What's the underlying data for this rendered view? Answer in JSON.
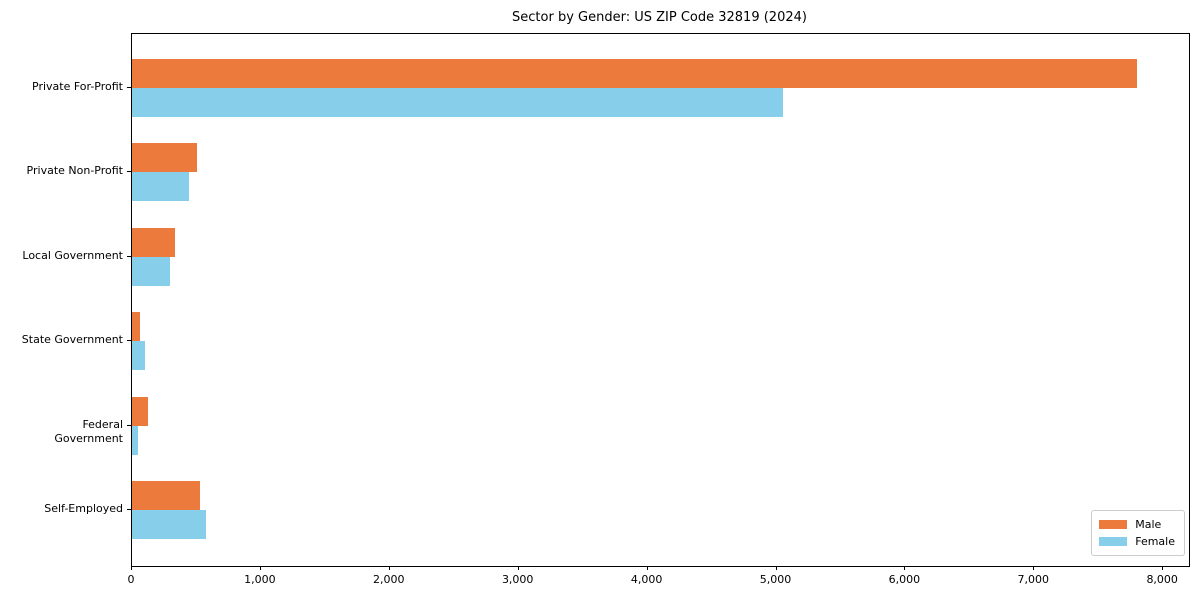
{
  "chart_data": {
    "type": "bar",
    "orientation": "horizontal",
    "title": "Sector by Gender: US ZIP Code 32819 (2024)",
    "categories": [
      "Private For-Profit",
      "Private Non-Profit",
      "Local Government",
      "State Government",
      "Federal Government",
      "Self-Employed"
    ],
    "series": [
      {
        "name": "Male",
        "color": "#EC7A3C",
        "values": [
          7800,
          500,
          330,
          60,
          125,
          530
        ]
      },
      {
        "name": "Female",
        "color": "#87CEEB",
        "values": [
          5050,
          445,
          295,
          100,
          50,
          575
        ]
      }
    ],
    "xlabel": "",
    "ylabel": "",
    "xlim": [
      0,
      8200
    ],
    "xticks": [
      0,
      1000,
      2000,
      3000,
      4000,
      5000,
      6000,
      7000,
      8000
    ],
    "xtick_labels": [
      "0",
      "1,000",
      "2,000",
      "3,000",
      "4,000",
      "5,000",
      "6,000",
      "7,000",
      "8,000"
    ],
    "legend_position": "lower right",
    "grid": false,
    "colors": {
      "axis": "#000000",
      "legend_border": "#cccccc",
      "background": "#ffffff"
    }
  }
}
